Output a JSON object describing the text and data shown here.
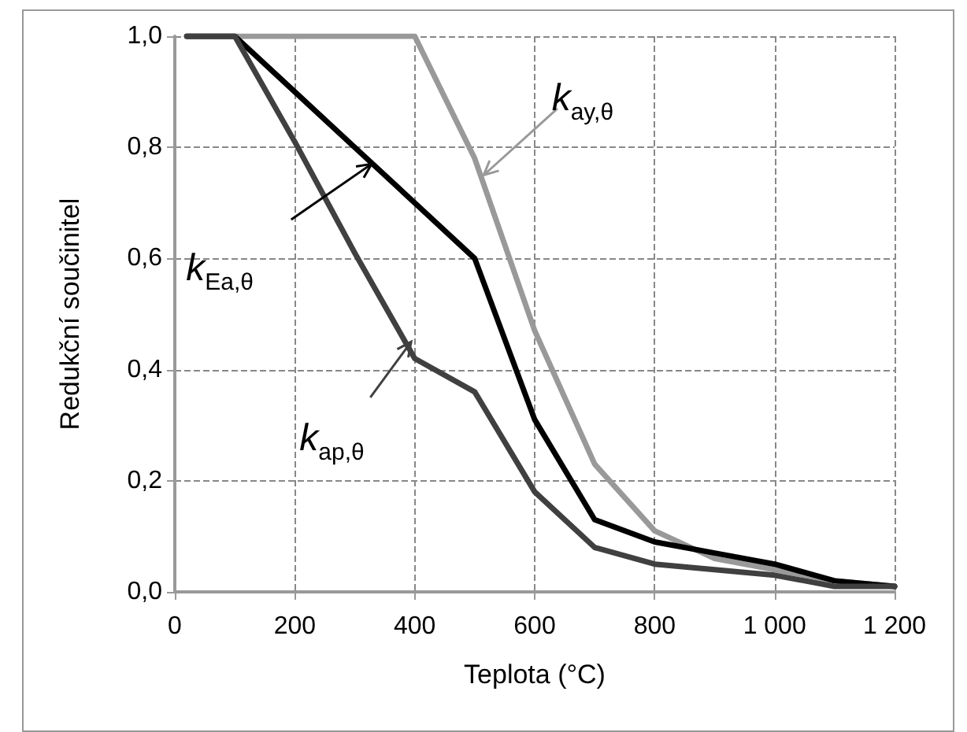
{
  "chart_data": {
    "type": "line",
    "xlabel": "Teplota (°C)",
    "ylabel": "Redukční součinitel",
    "x": [
      20,
      100,
      200,
      300,
      400,
      500,
      600,
      700,
      800,
      900,
      1000,
      1100,
      1200
    ],
    "series": [
      {
        "color": "#999999",
        "values": [
          1.0,
          1.0,
          1.0,
          1.0,
          1.0,
          0.78,
          0.47,
          0.23,
          0.11,
          0.06,
          0.04,
          0.02,
          0.01
        ]
      },
      {
        "color": "#000000",
        "values": [
          1.0,
          1.0,
          0.9,
          0.8,
          0.7,
          0.6,
          0.31,
          0.13,
          0.09,
          0.07,
          0.05,
          0.02,
          0.01
        ]
      },
      {
        "color": "#404040",
        "values": [
          1.0,
          1.0,
          0.81,
          0.61,
          0.42,
          0.36,
          0.18,
          0.08,
          0.05,
          0.04,
          0.03,
          0.01,
          0.01
        ]
      }
    ],
    "annotations": [
      {
        "text": "k$_{ay,θ}$",
        "x": 515,
        "y": 0.75
      },
      {
        "text": "k$_{Ea,θ}$",
        "x": 328,
        "y": 0.77
      },
      {
        "text": "k$_{ap,θ}$",
        "x": 394,
        "y": 0.45
      }
    ],
    "xlim": [
      0,
      1200
    ],
    "xticks": [
      0,
      200,
      400,
      600,
      800,
      {
        "value": 1000,
        "label": "1 000"
      },
      {
        "value": 1200,
        "label": "1 200"
      }
    ],
    "ylim": [
      0,
      1
    ],
    "yticks": [
      {
        "value": 0,
        "label": "0,0"
      },
      {
        "value": 0.2,
        "label": "0,2"
      },
      {
        "value": 0.4,
        "label": "0,4"
      },
      {
        "value": 0.6,
        "label": "0,6"
      },
      {
        "value": 0.8,
        "label": "0,8"
      },
      {
        "value": 1,
        "label": "1,0"
      }
    ],
    "grid": true,
    "marker": "none",
    "line_style": "solid"
  }
}
